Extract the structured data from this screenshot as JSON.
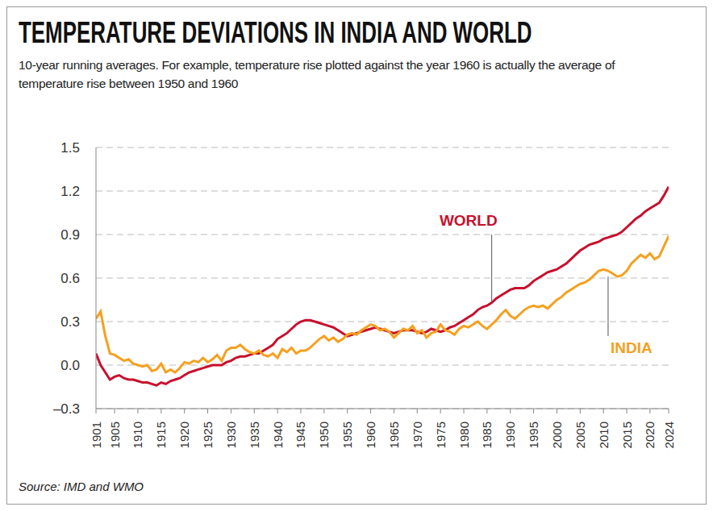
{
  "chart_data": {
    "type": "line",
    "title": "TEMPERATURE DEVIATIONS IN INDIA AND WORLD",
    "subtitle": "10-year running averages. For example, temperature rise plotted against the year 1960 is actually the average of temperature rise between 1950 and 1960",
    "source": "Source: IMD and WMO",
    "x": [
      1901,
      1902,
      1903,
      1904,
      1905,
      1906,
      1907,
      1908,
      1909,
      1910,
      1911,
      1912,
      1913,
      1914,
      1915,
      1916,
      1917,
      1918,
      1919,
      1920,
      1921,
      1922,
      1923,
      1924,
      1925,
      1926,
      1927,
      1928,
      1929,
      1930,
      1931,
      1932,
      1933,
      1934,
      1935,
      1936,
      1937,
      1938,
      1939,
      1940,
      1941,
      1942,
      1943,
      1944,
      1945,
      1946,
      1947,
      1948,
      1949,
      1950,
      1951,
      1952,
      1953,
      1954,
      1955,
      1956,
      1957,
      1958,
      1959,
      1960,
      1961,
      1962,
      1963,
      1964,
      1965,
      1966,
      1967,
      1968,
      1969,
      1970,
      1971,
      1972,
      1973,
      1974,
      1975,
      1976,
      1977,
      1978,
      1979,
      1980,
      1981,
      1982,
      1983,
      1984,
      1985,
      1986,
      1987,
      1988,
      1989,
      1990,
      1991,
      1992,
      1993,
      1994,
      1995,
      1996,
      1997,
      1998,
      1999,
      2000,
      2001,
      2002,
      2003,
      2004,
      2005,
      2006,
      2007,
      2008,
      2009,
      2010,
      2011,
      2012,
      2013,
      2014,
      2015,
      2016,
      2017,
      2018,
      2019,
      2020,
      2021,
      2022,
      2023,
      2024
    ],
    "series": [
      {
        "name": "WORLD",
        "color": "#c8102e",
        "values": [
          0.08,
          0.0,
          -0.05,
          -0.1,
          -0.08,
          -0.07,
          -0.09,
          -0.1,
          -0.1,
          -0.11,
          -0.12,
          -0.12,
          -0.13,
          -0.14,
          -0.12,
          -0.13,
          -0.11,
          -0.1,
          -0.09,
          -0.07,
          -0.05,
          -0.04,
          -0.03,
          -0.02,
          -0.01,
          0.0,
          0.0,
          0.0,
          0.02,
          0.03,
          0.05,
          0.06,
          0.06,
          0.07,
          0.08,
          0.08,
          0.1,
          0.12,
          0.14,
          0.18,
          0.2,
          0.22,
          0.25,
          0.28,
          0.3,
          0.31,
          0.31,
          0.3,
          0.29,
          0.28,
          0.27,
          0.26,
          0.24,
          0.22,
          0.2,
          0.21,
          0.22,
          0.23,
          0.24,
          0.25,
          0.26,
          0.25,
          0.24,
          0.23,
          0.22,
          0.23,
          0.24,
          0.24,
          0.24,
          0.23,
          0.22,
          0.23,
          0.25,
          0.24,
          0.23,
          0.24,
          0.26,
          0.27,
          0.29,
          0.31,
          0.33,
          0.35,
          0.38,
          0.4,
          0.41,
          0.43,
          0.46,
          0.48,
          0.5,
          0.52,
          0.53,
          0.53,
          0.53,
          0.55,
          0.58,
          0.6,
          0.62,
          0.64,
          0.65,
          0.66,
          0.68,
          0.7,
          0.73,
          0.76,
          0.79,
          0.81,
          0.83,
          0.84,
          0.85,
          0.87,
          0.88,
          0.89,
          0.9,
          0.92,
          0.95,
          0.98,
          1.01,
          1.03,
          1.06,
          1.08,
          1.1,
          1.12,
          1.17,
          1.23
        ]
      },
      {
        "name": "INDIA",
        "color": "#f5a01f",
        "values": [
          0.32,
          0.37,
          0.2,
          0.08,
          0.07,
          0.05,
          0.03,
          0.04,
          0.01,
          0.0,
          -0.01,
          0.0,
          -0.04,
          -0.03,
          0.01,
          -0.05,
          -0.03,
          -0.05,
          -0.02,
          0.02,
          0.01,
          0.03,
          0.02,
          0.05,
          0.02,
          0.04,
          0.07,
          0.03,
          0.1,
          0.12,
          0.12,
          0.14,
          0.11,
          0.09,
          0.08,
          0.1,
          0.07,
          0.06,
          0.08,
          0.05,
          0.11,
          0.09,
          0.12,
          0.08,
          0.1,
          0.1,
          0.12,
          0.15,
          0.18,
          0.2,
          0.17,
          0.19,
          0.16,
          0.18,
          0.21,
          0.22,
          0.21,
          0.24,
          0.26,
          0.28,
          0.27,
          0.24,
          0.25,
          0.23,
          0.19,
          0.22,
          0.25,
          0.24,
          0.27,
          0.22,
          0.24,
          0.19,
          0.22,
          0.23,
          0.28,
          0.24,
          0.23,
          0.21,
          0.25,
          0.27,
          0.26,
          0.28,
          0.3,
          0.27,
          0.25,
          0.28,
          0.31,
          0.35,
          0.38,
          0.34,
          0.32,
          0.35,
          0.38,
          0.4,
          0.41,
          0.4,
          0.41,
          0.39,
          0.42,
          0.45,
          0.47,
          0.5,
          0.52,
          0.54,
          0.56,
          0.57,
          0.59,
          0.62,
          0.65,
          0.66,
          0.65,
          0.63,
          0.61,
          0.62,
          0.65,
          0.7,
          0.73,
          0.76,
          0.74,
          0.77,
          0.73,
          0.75,
          0.82,
          0.89
        ]
      }
    ],
    "xlim": [
      1901,
      2024
    ],
    "xticks": [
      1901,
      1905,
      1910,
      1915,
      1920,
      1925,
      1930,
      1935,
      1940,
      1945,
      1950,
      1955,
      1960,
      1965,
      1970,
      1975,
      1980,
      1985,
      1990,
      1995,
      2000,
      2005,
      2010,
      2015,
      2020,
      2024
    ],
    "ylim": [
      -0.3,
      1.5
    ],
    "yticks": [
      {
        "value": -0.3,
        "label": "–0.3"
      },
      {
        "value": 0,
        "label": "0.0"
      },
      0.3,
      0.6,
      0.9,
      1.2,
      1.5
    ],
    "grid": true
  }
}
